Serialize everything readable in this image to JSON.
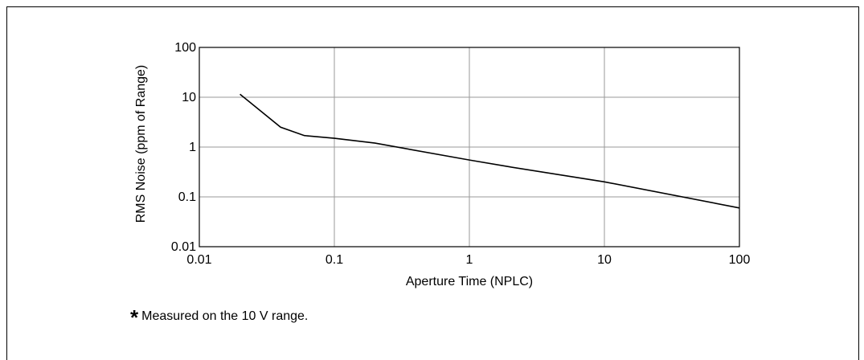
{
  "footnote": {
    "marker": "*",
    "text": "Measured on the 10 V range."
  },
  "chart_data": {
    "type": "line",
    "xscale": "log",
    "yscale": "log",
    "xlim": [
      0.01,
      100
    ],
    "ylim": [
      0.01,
      100
    ],
    "grid": true,
    "xlabel": "Aperture Time (NPLC)",
    "ylabel": "RMS Noise (ppm of Range)",
    "xticks": [
      0.01,
      0.1,
      1,
      10,
      100
    ],
    "yticks": [
      0.01,
      0.1,
      1,
      10,
      100
    ],
    "xtick_labels": [
      "0.01",
      "0.1",
      "1",
      "10",
      "100"
    ],
    "ytick_labels": [
      "0.01",
      "0.1",
      "1",
      "10",
      "100"
    ],
    "series": [
      {
        "color": "#000000",
        "x": [
          0.02,
          0.04,
          0.06,
          0.1,
          0.2,
          1,
          2,
          10,
          100
        ],
        "y": [
          11.5,
          2.5,
          1.7,
          1.5,
          1.2,
          0.55,
          0.4,
          0.2,
          0.06
        ]
      }
    ]
  }
}
